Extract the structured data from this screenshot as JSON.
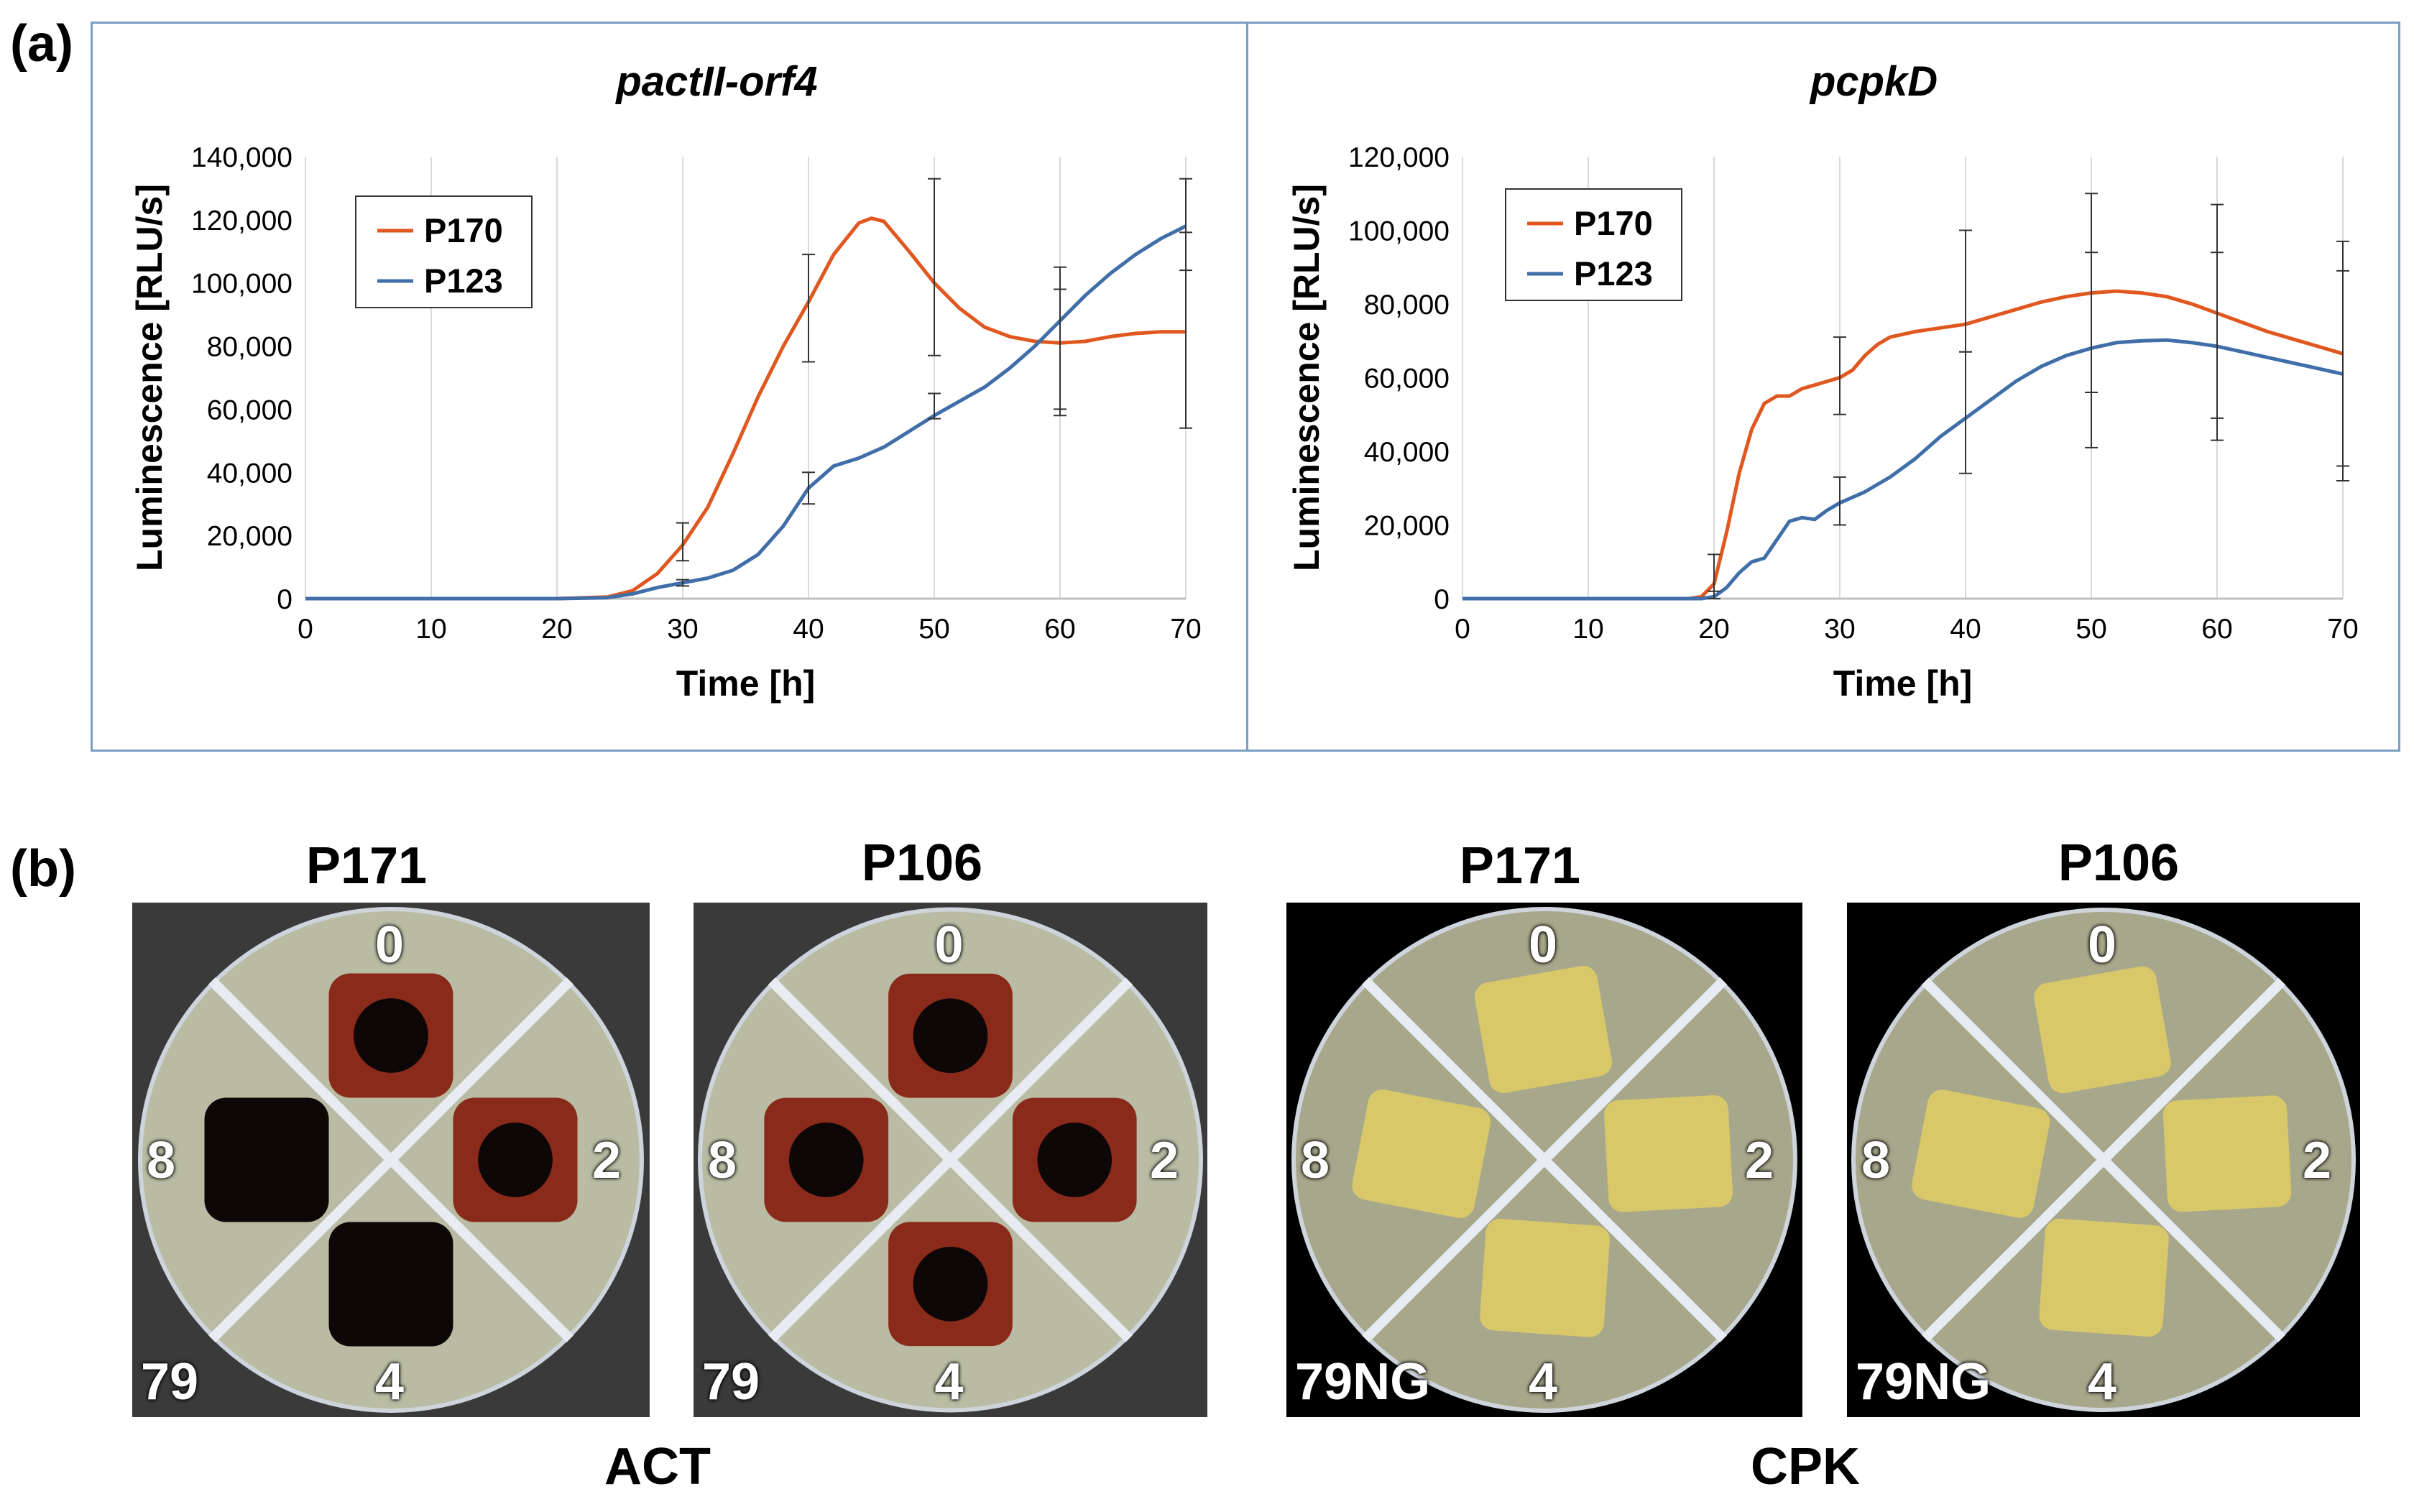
{
  "figure": {
    "panel_a_letter": "(a)",
    "panel_b_letter": "(b)"
  },
  "chart_data": [
    {
      "type": "line",
      "title": "pactII-orf4",
      "xlabel": "Time [h]",
      "ylabel": "Luminescence [RLU/s]",
      "xlim": [
        0,
        70
      ],
      "ylim": [
        0,
        140000
      ],
      "xticks": [
        0,
        10,
        20,
        30,
        40,
        50,
        60,
        70
      ],
      "xtick_labels": [
        "0",
        "10",
        "20",
        "30",
        "40",
        "50",
        "60",
        "70"
      ],
      "yticks": [
        0,
        20000,
        40000,
        60000,
        80000,
        100000,
        120000,
        140000
      ],
      "ytick_labels": [
        "0",
        "20,000",
        "40,000",
        "60,000",
        "80,000",
        "100,000",
        "120,000",
        "140,000"
      ],
      "grid": "vertical",
      "legend": "top-left",
      "series": [
        {
          "name": "P170",
          "color": "#e0571f",
          "x": [
            0,
            20,
            24,
            26,
            28,
            30,
            32,
            34,
            36,
            38,
            40,
            42,
            44,
            45,
            46,
            48,
            50,
            52,
            54,
            56,
            58,
            60,
            62,
            64,
            66,
            68,
            70
          ],
          "y": [
            0,
            0,
            500,
            2500,
            8000,
            17000,
            29000,
            46000,
            64000,
            80000,
            94000,
            109000,
            119000,
            120500,
            119500,
            110000,
            100000,
            92000,
            86000,
            83000,
            81500,
            81000,
            81500,
            83000,
            84000,
            84500,
            84500
          ],
          "error_x": [
            30,
            40,
            50,
            60,
            70
          ],
          "error_low": [
            12000,
            75000,
            77000,
            58000,
            54000
          ],
          "error_high": [
            24000,
            109000,
            133000,
            105000,
            116000
          ]
        },
        {
          "name": "P123",
          "color": "#3f6ea8",
          "x": [
            0,
            20,
            24,
            26,
            28,
            30,
            32,
            34,
            36,
            38,
            40,
            42,
            44,
            46,
            48,
            50,
            52,
            54,
            56,
            58,
            60,
            62,
            64,
            66,
            68,
            70
          ],
          "y": [
            0,
            0,
            300,
            1500,
            3500,
            5000,
            6500,
            9000,
            14000,
            23000,
            35000,
            42000,
            44500,
            48000,
            53000,
            58000,
            62500,
            67000,
            73000,
            80000,
            88000,
            96000,
            103000,
            109000,
            114000,
            118000
          ],
          "error_x": [
            30,
            40,
            50,
            60,
            70
          ],
          "error_low": [
            4000,
            30000,
            57000,
            60000,
            104000
          ],
          "error_high": [
            6000,
            40000,
            65000,
            98000,
            133000
          ]
        }
      ]
    },
    {
      "type": "line",
      "title": "pcpkD",
      "xlabel": "Time [h]",
      "ylabel": "Luminescence [RLU/s]",
      "xlim": [
        0,
        70
      ],
      "ylim": [
        0,
        120000
      ],
      "xticks": [
        0,
        10,
        20,
        30,
        40,
        50,
        60,
        70
      ],
      "xtick_labels": [
        "0",
        "10",
        "20",
        "30",
        "40",
        "50",
        "60",
        "70"
      ],
      "yticks": [
        0,
        20000,
        40000,
        60000,
        80000,
        100000,
        120000
      ],
      "ytick_labels": [
        "0",
        "20,000",
        "40,000",
        "60,000",
        "80,000",
        "100,000",
        "120,000"
      ],
      "grid": "vertical",
      "legend": "top-left",
      "series": [
        {
          "name": "P170",
          "color": "#e0571f",
          "x": [
            0,
            18,
            19,
            20,
            21,
            22,
            23,
            24,
            25,
            26,
            27,
            28,
            29,
            30,
            31,
            32,
            33,
            34,
            36,
            38,
            40,
            42,
            44,
            46,
            48,
            50,
            52,
            54,
            56,
            58,
            60,
            62,
            64,
            66,
            68,
            70
          ],
          "y": [
            0,
            0,
            500,
            4000,
            18000,
            34000,
            46000,
            53000,
            55000,
            55000,
            57000,
            58000,
            59000,
            60000,
            62000,
            66000,
            69000,
            71000,
            72500,
            73500,
            74500,
            76500,
            78500,
            80500,
            82000,
            83000,
            83500,
            83000,
            82000,
            80000,
            77500,
            75000,
            72500,
            70500,
            68500,
            66500
          ],
          "error_x": [
            20,
            30,
            40,
            50,
            60,
            70
          ],
          "error_low": [
            0,
            50000,
            67000,
            56000,
            49000,
            36000
          ],
          "error_high": [
            12000,
            71000,
            100000,
            110000,
            107000,
            97000
          ]
        },
        {
          "name": "P123",
          "color": "#3f6ea8",
          "x": [
            0,
            19,
            20,
            21,
            22,
            23,
            24,
            25,
            26,
            27,
            28,
            29,
            30,
            32,
            34,
            36,
            38,
            40,
            42,
            44,
            46,
            48,
            50,
            52,
            54,
            56,
            58,
            60,
            62,
            64,
            66,
            68,
            70
          ],
          "y": [
            0,
            0,
            500,
            3000,
            7000,
            10000,
            11000,
            16000,
            21000,
            22000,
            21500,
            24000,
            26000,
            29000,
            33000,
            38000,
            44000,
            49000,
            54000,
            59000,
            63000,
            66000,
            68000,
            69500,
            70000,
            70200,
            69500,
            68500,
            67000,
            65500,
            64000,
            62500,
            61000
          ],
          "error_x": [
            20,
            30,
            40,
            50,
            60,
            70
          ],
          "error_low": [
            0,
            20000,
            34000,
            41000,
            43000,
            32000
          ],
          "error_high": [
            2000,
            33000,
            67000,
            94000,
            94000,
            89000
          ]
        }
      ]
    }
  ],
  "plates": {
    "act_group_label": "ACT",
    "cpk_group_label": "CPK",
    "items": [
      {
        "title": "P171",
        "strain": "79",
        "top": "0",
        "right": "2",
        "bottom": "4",
        "left": "8"
      },
      {
        "title": "P106",
        "strain": "79",
        "top": "0",
        "right": "2",
        "bottom": "4",
        "left": "8"
      },
      {
        "title": "P171",
        "strain": "79NG",
        "top": "0",
        "right": "2",
        "bottom": "4",
        "left": "8"
      },
      {
        "title": "P106",
        "strain": "79NG",
        "top": "0",
        "right": "2",
        "bottom": "4",
        "left": "8"
      }
    ]
  }
}
